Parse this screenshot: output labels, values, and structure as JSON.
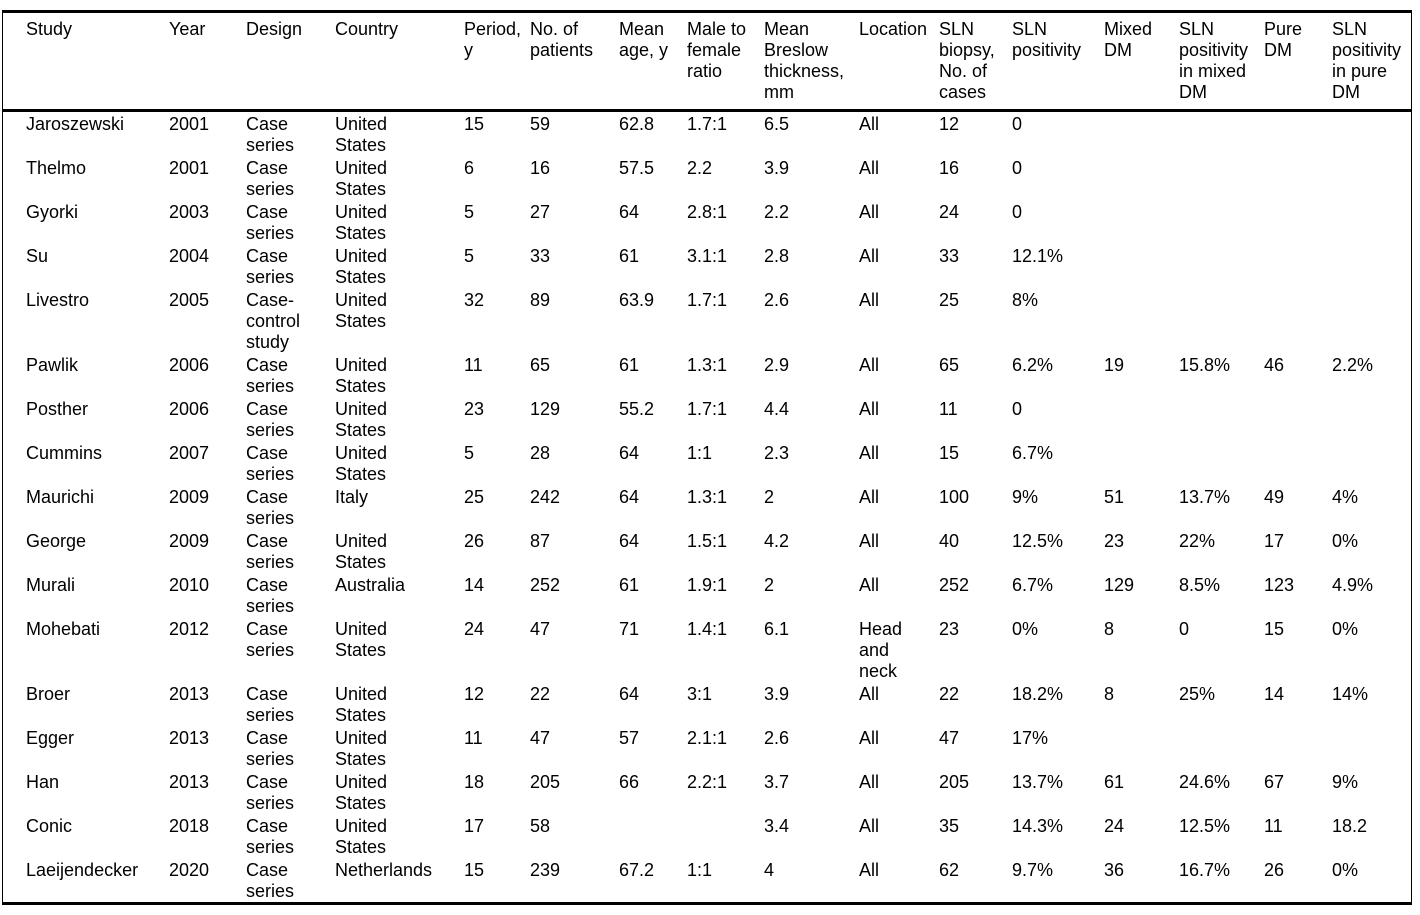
{
  "table": {
    "columns": [
      "Study",
      "Year",
      "Design",
      "Country",
      "Period, y",
      "No. of patients",
      "Mean age, y",
      "Male to female ratio",
      "Mean Breslow thickness, mm",
      "Location",
      "SLN biopsy, No. of cases",
      "SLN positivity",
      "Mixed DM",
      "SLN positivity in mixed DM",
      "Pure DM",
      "SLN positivity in pure DM"
    ],
    "rows": [
      [
        "Jaroszewski",
        "2001",
        "Case series",
        "United States",
        "15",
        "59",
        "62.8",
        "1.7:1",
        "6.5",
        "All",
        "12",
        "0",
        "",
        "",
        "",
        ""
      ],
      [
        "Thelmo",
        "2001",
        "Case series",
        "United States",
        "6",
        "16",
        "57.5",
        "2.2",
        "3.9",
        "All",
        "16",
        "0",
        "",
        "",
        "",
        ""
      ],
      [
        "Gyorki",
        "2003",
        "Case series",
        "United States",
        "5",
        "27",
        "64",
        "2.8:1",
        "2.2",
        "All",
        "24",
        "0",
        "",
        "",
        "",
        ""
      ],
      [
        "Su",
        "2004",
        "Case series",
        "United States",
        "5",
        "33",
        "61",
        "3.1:1",
        "2.8",
        "All",
        "33",
        "12.1%",
        "",
        "",
        "",
        ""
      ],
      [
        "Livestro",
        "2005",
        "Case-control study",
        "United States",
        "32",
        "89",
        "63.9",
        "1.7:1",
        "2.6",
        "All",
        "25",
        "8%",
        "",
        "",
        "",
        ""
      ],
      [
        "Pawlik",
        "2006",
        "Case series",
        "United States",
        "11",
        "65",
        "61",
        "1.3:1",
        "2.9",
        "All",
        "65",
        "6.2%",
        "19",
        "15.8%",
        "46",
        "2.2%"
      ],
      [
        "Posther",
        "2006",
        "Case series",
        "United States",
        "23",
        "129",
        "55.2",
        "1.7:1",
        "4.4",
        "All",
        "11",
        "0",
        "",
        "",
        "",
        ""
      ],
      [
        "Cummins",
        "2007",
        "Case series",
        "United States",
        "5",
        "28",
        "64",
        "1:1",
        "2.3",
        "All",
        "15",
        "6.7%",
        "",
        "",
        "",
        ""
      ],
      [
        "Maurichi",
        "2009",
        "Case series",
        "Italy",
        "25",
        "242",
        "64",
        "1.3:1",
        "2",
        "All",
        "100",
        "9%",
        "51",
        "13.7%",
        "49",
        "4%"
      ],
      [
        "George",
        "2009",
        "Case series",
        "United States",
        "26",
        "87",
        "64",
        "1.5:1",
        "4.2",
        "All",
        "40",
        "12.5%",
        "23",
        "22%",
        "17",
        "0%"
      ],
      [
        "Murali",
        "2010",
        "Case series",
        "Australia",
        "14",
        "252",
        "61",
        "1.9:1",
        "2",
        "All",
        "252",
        "6.7%",
        "129",
        "8.5%",
        "123",
        "4.9%"
      ],
      [
        "Mohebati",
        "2012",
        "Case series",
        "United States",
        "24",
        "47",
        "71",
        "1.4:1",
        "6.1",
        "Head and neck",
        "23",
        "0%",
        "8",
        "0",
        "15",
        "0%"
      ],
      [
        "Broer",
        "2013",
        "Case series",
        "United States",
        "12",
        "22",
        "64",
        "3:1",
        "3.9",
        "All",
        "22",
        "18.2%",
        "8",
        "25%",
        "14",
        "14%"
      ],
      [
        "Egger",
        "2013",
        "Case series",
        "United States",
        "11",
        "47",
        "57",
        "2.1:1",
        "2.6",
        "All",
        "47",
        "17%",
        "",
        "",
        "",
        ""
      ],
      [
        "Han",
        "2013",
        "Case series",
        "United States",
        "18",
        "205",
        "66",
        "2.2:1",
        "3.7",
        "All",
        "205",
        "13.7%",
        "61",
        "24.6%",
        "67",
        "9%"
      ],
      [
        "Conic",
        "2018",
        "Case series",
        "United States",
        "17",
        "58",
        "",
        "",
        "3.4",
        "All",
        "35",
        "14.3%",
        "24",
        "12.5%",
        "11",
        "18.2"
      ],
      [
        "Laeijendecker",
        "2020",
        "Case series",
        "Netherlands",
        "15",
        "239",
        "67.2",
        "1:1",
        "4",
        "All",
        "62",
        "9.7%",
        "36",
        "16.7%",
        "26",
        "0%"
      ]
    ]
  }
}
